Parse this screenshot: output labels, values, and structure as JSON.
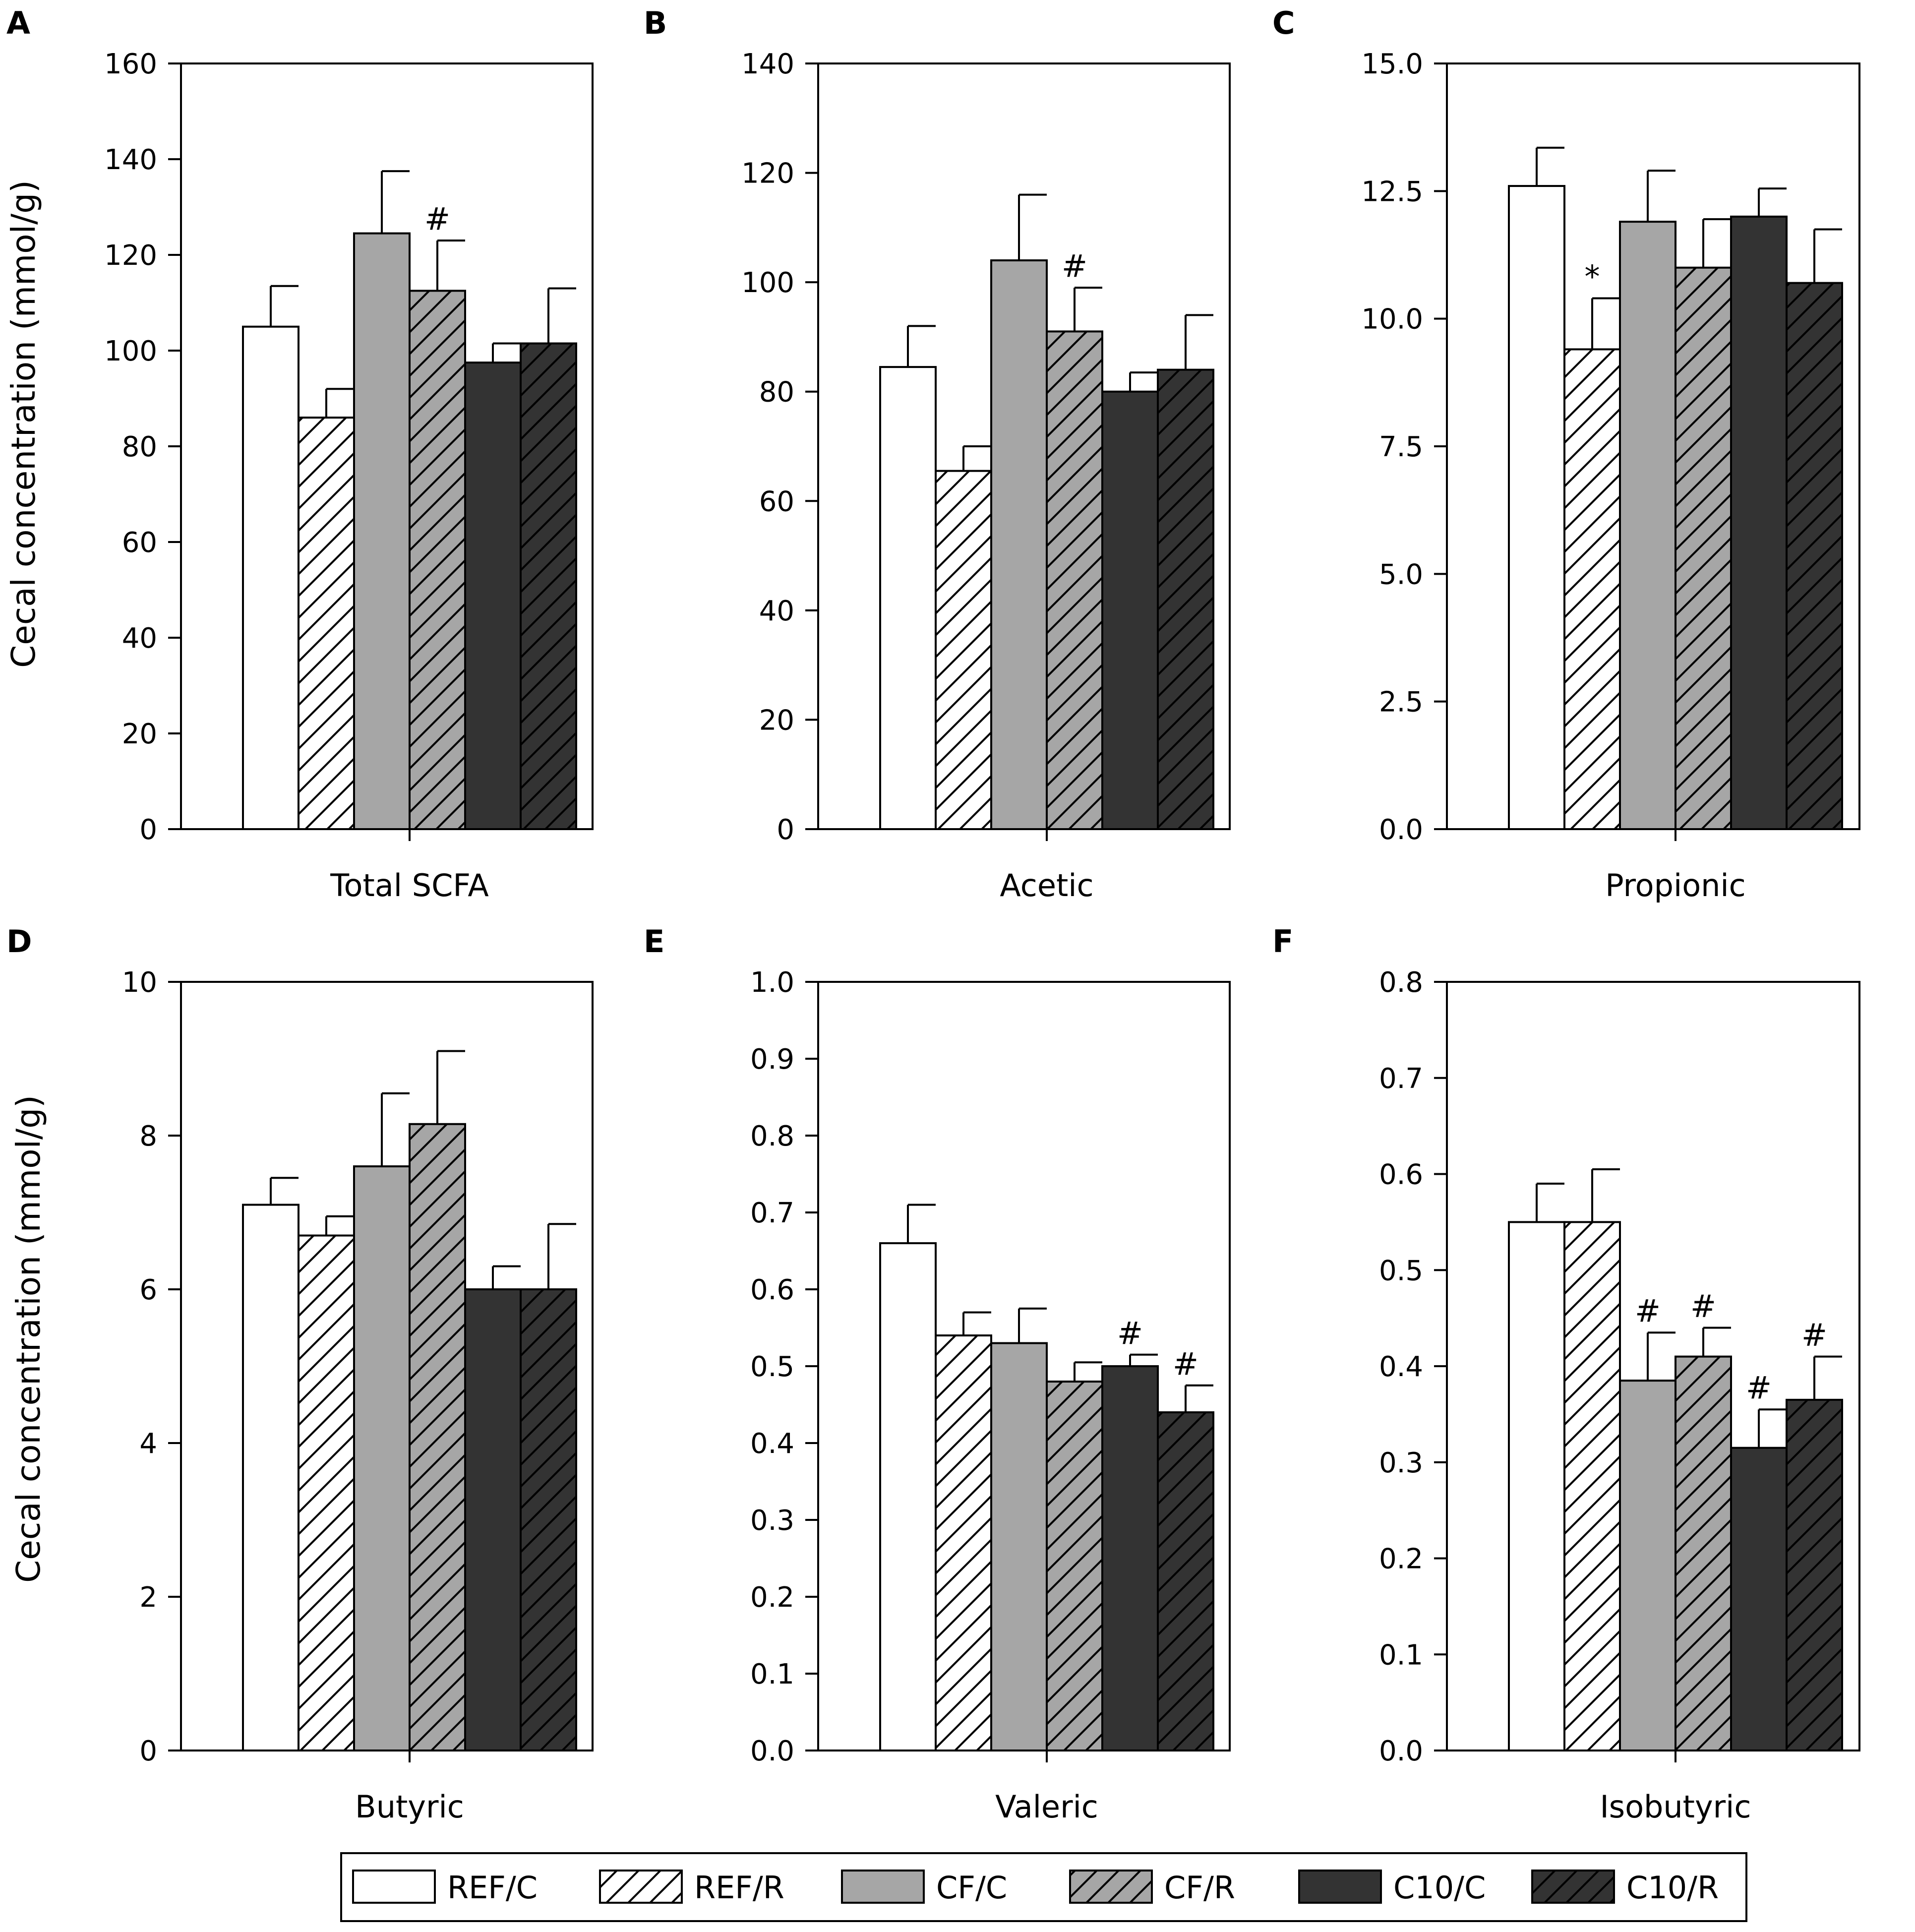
{
  "chart_data": {
    "type": "bar",
    "ylabel": "Cecal concentration (mmol/g)",
    "groups": [
      "REF/C",
      "REF/R",
      "CF/C",
      "CF/R",
      "C10/C",
      "C10/R"
    ],
    "group_colors": [
      "#ffffff",
      "#ffffff",
      "#a6a6a6",
      "#a6a6a6",
      "#333333",
      "#333333"
    ],
    "group_hatched": [
      false,
      true,
      false,
      true,
      false,
      true
    ],
    "panels": [
      {
        "letter": "A",
        "category": "Total SCFA",
        "ylim": [
          0,
          160
        ],
        "ticks": [
          "0",
          "20",
          "40",
          "60",
          "80",
          "100",
          "120",
          "140",
          "160"
        ],
        "values": [
          105,
          86,
          124.5,
          112.5,
          97.5,
          101.5
        ],
        "errors": [
          8.5,
          6,
          13,
          10.5,
          4,
          11.5
        ],
        "marks": [
          "",
          "",
          "",
          "#",
          "",
          ""
        ]
      },
      {
        "letter": "B",
        "category": "Acetic",
        "ylim": [
          0,
          140
        ],
        "ticks": [
          "0",
          "20",
          "40",
          "60",
          "80",
          "100",
          "120",
          "140"
        ],
        "values": [
          84.5,
          65.5,
          104,
          91,
          80,
          84
        ],
        "errors": [
          7.5,
          4.5,
          12,
          8,
          3.5,
          10
        ],
        "marks": [
          "",
          "",
          "",
          "#",
          "",
          ""
        ]
      },
      {
        "letter": "C",
        "category": "Propionic",
        "ylim": [
          0,
          15
        ],
        "ticks": [
          "0.0",
          "2.5",
          "5.0",
          "7.5",
          "10.0",
          "12.5",
          "15.0"
        ],
        "values": [
          12.6,
          9.4,
          11.9,
          11,
          12,
          10.7
        ],
        "errors": [
          0.75,
          1,
          1,
          0.95,
          0.55,
          1.05
        ],
        "marks": [
          "",
          "*",
          "",
          "",
          "",
          ""
        ]
      },
      {
        "letter": "D",
        "category": "Butyric",
        "ylim": [
          0,
          10
        ],
        "ticks": [
          "0",
          "2",
          "4",
          "6",
          "8",
          "10"
        ],
        "values": [
          7.1,
          6.7,
          7.6,
          8.15,
          6,
          6
        ],
        "errors": [
          0.35,
          0.25,
          0.95,
          0.95,
          0.3,
          0.85
        ],
        "marks": [
          "",
          "",
          "",
          "",
          "",
          ""
        ]
      },
      {
        "letter": "E",
        "category": "Valeric",
        "ylim": [
          0,
          1
        ],
        "ticks": [
          "0.0",
          "0.1",
          "0.2",
          "0.3",
          "0.4",
          "0.5",
          "0.6",
          "0.7",
          "0.8",
          "0.9",
          "1.0"
        ],
        "values": [
          0.66,
          0.54,
          0.53,
          0.48,
          0.5,
          0.44
        ],
        "errors": [
          0.05,
          0.03,
          0.045,
          0.025,
          0.015,
          0.035
        ],
        "marks": [
          "",
          "",
          "",
          "",
          "#",
          "#"
        ]
      },
      {
        "letter": "F",
        "category": "Isobutyric",
        "ylim": [
          0,
          0.8
        ],
        "ticks": [
          "0.0",
          "0.1",
          "0.2",
          "0.3",
          "0.4",
          "0.5",
          "0.6",
          "0.7",
          "0.8"
        ],
        "values": [
          0.55,
          0.55,
          0.385,
          0.41,
          0.315,
          0.365
        ],
        "errors": [
          0.04,
          0.055,
          0.05,
          0.03,
          0.04,
          0.045
        ],
        "marks": [
          "",
          "",
          "#",
          "#",
          "#",
          "#"
        ]
      }
    ]
  }
}
